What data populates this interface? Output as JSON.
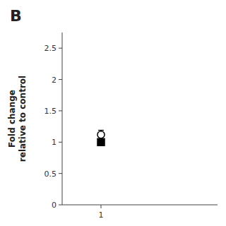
{
  "chart_data": {
    "type": "scatter",
    "title": "B",
    "y_label": "Fold change\nrelative to control",
    "xlim": [
      0.5,
      2.5
    ],
    "ylim": [
      0,
      2.75
    ],
    "xticks": [
      1
    ],
    "yticks": [
      0,
      0.5,
      1,
      1.5,
      2,
      2.5
    ],
    "grid": false,
    "series": [
      {
        "x": [
          1
        ],
        "values": [
          1.0
        ],
        "errors": [
          0.05
        ],
        "marker": "square",
        "color": "black"
      },
      {
        "x": [
          1
        ],
        "values": [
          1.12
        ],
        "errors": [
          0.07
        ],
        "marker": "circle-open",
        "color": "black"
      }
    ]
  }
}
